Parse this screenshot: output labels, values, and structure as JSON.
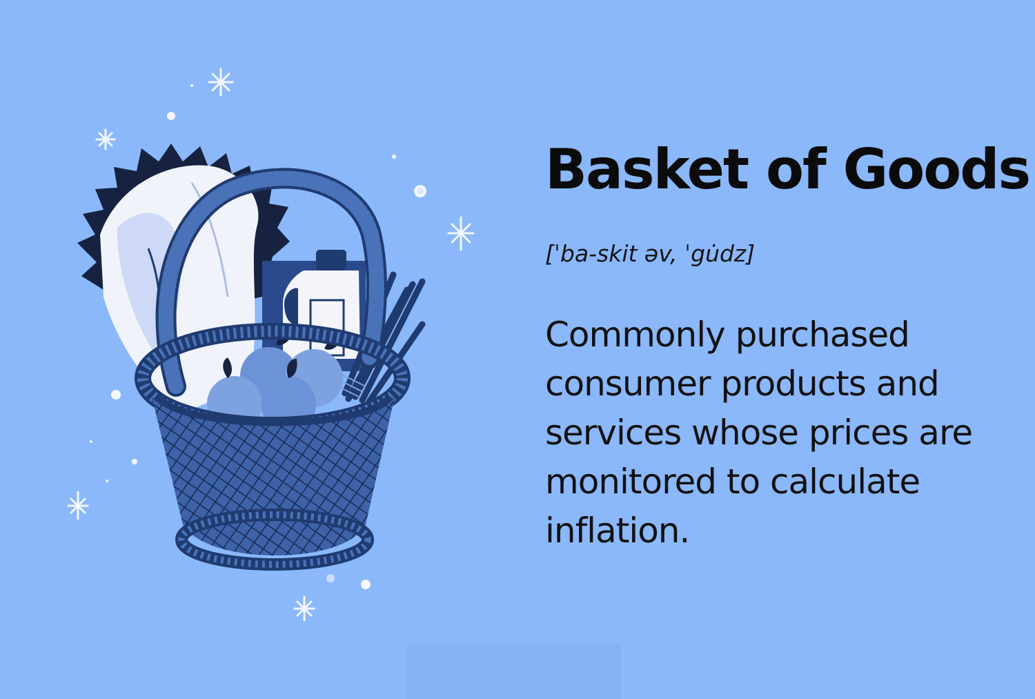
{
  "card": {
    "title": "Basket of Goods",
    "pronunciation": "[ˈba-skit əv, ˈgu̇dz]",
    "definition": "Commonly purchased consumer products and services whose prices are monitored to calculate inflation."
  },
  "illustration": {
    "icon": "grocery-basket-icon",
    "contents": [
      "bread-loaf",
      "milk-jug",
      "apples",
      "breadsticks",
      "leafy-greens"
    ]
  },
  "colors": {
    "background": "#8ab8fb",
    "text": "#0b0b0b",
    "basket": "#3d62a8",
    "basket_dark": "#1f3b70"
  }
}
